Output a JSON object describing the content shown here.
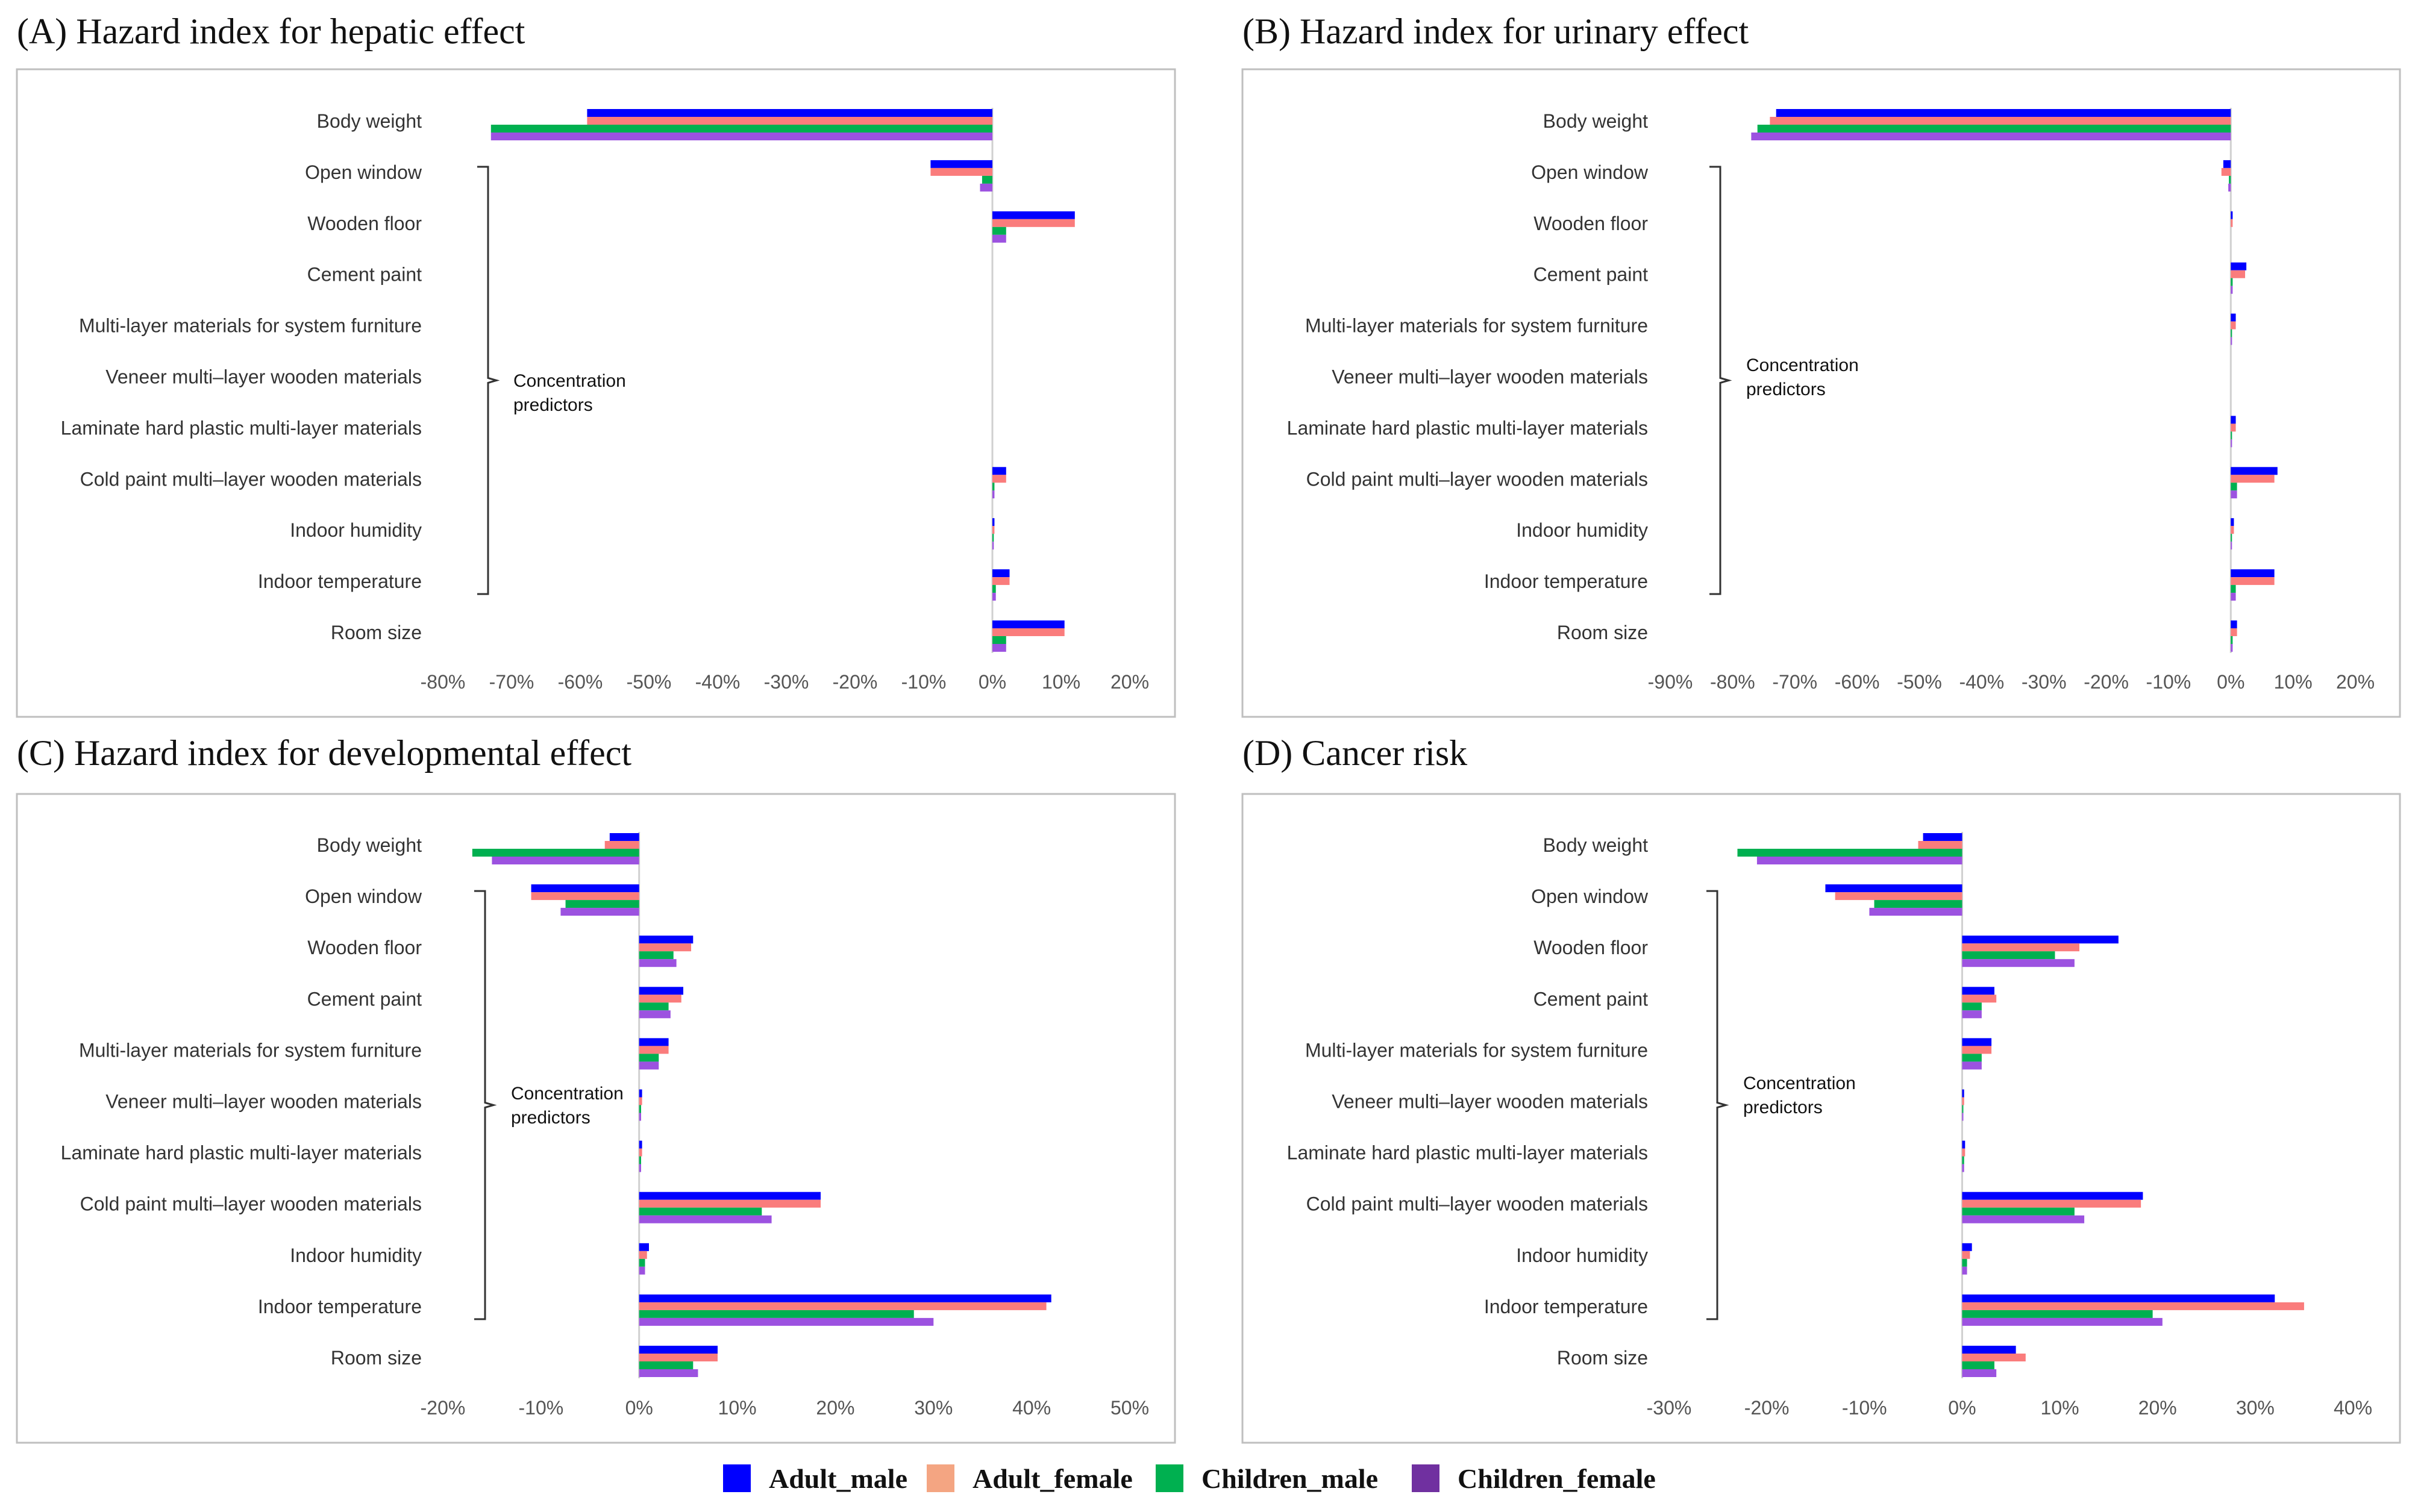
{
  "legend": {
    "series": [
      {
        "name": "Adult_male",
        "color": "#0000ff"
      },
      {
        "name": "Adult_female",
        "color": "#f4a582"
      },
      {
        "name": "Children_male",
        "color": "#00b050"
      },
      {
        "name": "Children_female",
        "color": "#7030a0"
      }
    ]
  },
  "bar_colors": [
    "#0000ff",
    "#fa7c7c",
    "#00b050",
    "#9c52e0"
  ],
  "annotation": {
    "line1": "Concentration",
    "line2": "predictors"
  },
  "chart_data": [
    {
      "type": "bar",
      "orientation": "horizontal",
      "title": "(A) Hazard index for hepatic effect",
      "categories": [
        "Body weight",
        "Open window",
        "Wooden floor",
        "Cement paint",
        "Multi-layer materials for system furniture",
        "Veneer multi–layer wooden materials",
        "Laminate hard plastic multi-layer materials",
        "Cold paint multi–layer wooden materials",
        "Indoor humidity",
        "Indoor temperature",
        "Room size"
      ],
      "xlim": [
        -80,
        20
      ],
      "xticks": [
        -80,
        -70,
        -60,
        -50,
        -40,
        -30,
        -20,
        -10,
        0,
        10,
        20
      ],
      "tick_labels": [
        "-80%",
        "-70%",
        "-60%",
        "-50%",
        "-40%",
        "-30%",
        "-20%",
        "-10%",
        "0%",
        "10%",
        "20%"
      ],
      "unit": "percent",
      "series": [
        {
          "name": "Adult_male",
          "values": [
            -59,
            -9,
            12,
            0,
            0,
            0,
            0,
            2,
            0.3,
            2.5,
            10.5
          ]
        },
        {
          "name": "Adult_female",
          "values": [
            -59,
            -9,
            12,
            0,
            0,
            0,
            0,
            2,
            0.3,
            2.5,
            10.5
          ]
        },
        {
          "name": "Children_male",
          "values": [
            -73,
            -1.5,
            2,
            0,
            0,
            0,
            0,
            0.3,
            0.2,
            0.5,
            2
          ]
        },
        {
          "name": "Children_female",
          "values": [
            -73,
            -1.8,
            2,
            0,
            0,
            0,
            0,
            0.3,
            0.2,
            0.5,
            2
          ]
        }
      ]
    },
    {
      "type": "bar",
      "orientation": "horizontal",
      "title": "(B) Hazard index for urinary effect",
      "categories": [
        "Body weight",
        "Open window",
        "Wooden floor",
        "Cement paint",
        "Multi-layer materials for system furniture",
        "Veneer multi–layer wooden materials",
        "Laminate hard plastic multi-layer materials",
        "Cold paint multi–layer wooden materials",
        "Indoor humidity",
        "Indoor temperature",
        "Room size"
      ],
      "xlim": [
        -90,
        20
      ],
      "xticks": [
        -90,
        -80,
        -70,
        -60,
        -50,
        -40,
        -30,
        -20,
        -10,
        0,
        10,
        20
      ],
      "tick_labels": [
        "-90%",
        "-80%",
        "-70%",
        "-60%",
        "-50%",
        "-40%",
        "-30%",
        "-20%",
        "-10%",
        "0%",
        "10%",
        "20%"
      ],
      "unit": "percent",
      "series": [
        {
          "name": "Adult_male",
          "values": [
            -73,
            -1.2,
            0.3,
            2.5,
            0.8,
            0,
            0.8,
            7.5,
            0.5,
            7,
            1
          ]
        },
        {
          "name": "Adult_female",
          "values": [
            -74,
            -1.5,
            0.3,
            2.3,
            0.8,
            0,
            0.8,
            7,
            0.5,
            7,
            1
          ]
        },
        {
          "name": "Children_male",
          "values": [
            -76,
            -0.3,
            0,
            0.3,
            0.2,
            0,
            0.2,
            1,
            0.1,
            0.8,
            0.3
          ]
        },
        {
          "name": "Children_female",
          "values": [
            -77,
            -0.4,
            0,
            0.3,
            0.2,
            0,
            0.2,
            1,
            0.1,
            0.8,
            0.3
          ]
        }
      ]
    },
    {
      "type": "bar",
      "orientation": "horizontal",
      "title": "(C) Hazard index for developmental effect",
      "categories": [
        "Body weight",
        "Open window",
        "Wooden floor",
        "Cement paint",
        "Multi-layer materials for system furniture",
        "Veneer multi–layer wooden materials",
        "Laminate hard plastic multi-layer materials",
        "Cold paint multi–layer wooden materials",
        "Indoor humidity",
        "Indoor temperature",
        "Room size"
      ],
      "xlim": [
        -20,
        50
      ],
      "xticks": [
        -20,
        -10,
        0,
        10,
        20,
        30,
        40,
        50
      ],
      "tick_labels": [
        "-20%",
        "-10%",
        "0%",
        "10%",
        "20%",
        "30%",
        "40%",
        "50%"
      ],
      "unit": "percent",
      "series": [
        {
          "name": "Adult_male",
          "values": [
            -3,
            -11,
            5.5,
            4.5,
            3,
            0.3,
            0.3,
            18.5,
            1,
            42,
            8
          ]
        },
        {
          "name": "Adult_female",
          "values": [
            -3.5,
            -11,
            5.3,
            4.3,
            3,
            0.3,
            0.3,
            18.5,
            0.8,
            41.5,
            8
          ]
        },
        {
          "name": "Children_male",
          "values": [
            -17,
            -7.5,
            3.5,
            3,
            2,
            0.2,
            0.2,
            12.5,
            0.6,
            28,
            5.5
          ]
        },
        {
          "name": "Children_female",
          "values": [
            -15,
            -8,
            3.8,
            3.2,
            2,
            0.2,
            0.2,
            13.5,
            0.6,
            30,
            6
          ]
        }
      ]
    },
    {
      "type": "bar",
      "orientation": "horizontal",
      "title": "(D) Cancer risk",
      "categories": [
        "Body weight",
        "Open window",
        "Wooden floor",
        "Cement paint",
        "Multi-layer materials for system furniture",
        "Veneer multi–layer wooden materials",
        "Laminate hard plastic multi-layer materials",
        "Cold paint multi–layer wooden materials",
        "Indoor humidity",
        "Indoor temperature",
        "Room size"
      ],
      "xlim": [
        -30,
        40
      ],
      "xticks": [
        -30,
        -20,
        -10,
        0,
        10,
        20,
        30,
        40
      ],
      "tick_labels": [
        "-30%",
        "-20%",
        "-10%",
        "0%",
        "10%",
        "20%",
        "30%",
        "40%"
      ],
      "unit": "percent",
      "series": [
        {
          "name": "Adult_male",
          "values": [
            -4,
            -14,
            16,
            3.3,
            3,
            0.2,
            0.3,
            18.5,
            1,
            32,
            5.5
          ]
        },
        {
          "name": "Adult_female",
          "values": [
            -4.5,
            -13,
            12,
            3.5,
            3,
            0.2,
            0.3,
            18.3,
            0.8,
            35,
            6.5
          ]
        },
        {
          "name": "Children_male",
          "values": [
            -23,
            -9,
            9.5,
            2,
            2,
            0.1,
            0.2,
            11.5,
            0.5,
            19.5,
            3.3
          ]
        },
        {
          "name": "Children_female",
          "values": [
            -21,
            -9.5,
            11.5,
            2,
            2,
            0.1,
            0.2,
            12.5,
            0.5,
            20.5,
            3.5
          ]
        }
      ]
    }
  ]
}
